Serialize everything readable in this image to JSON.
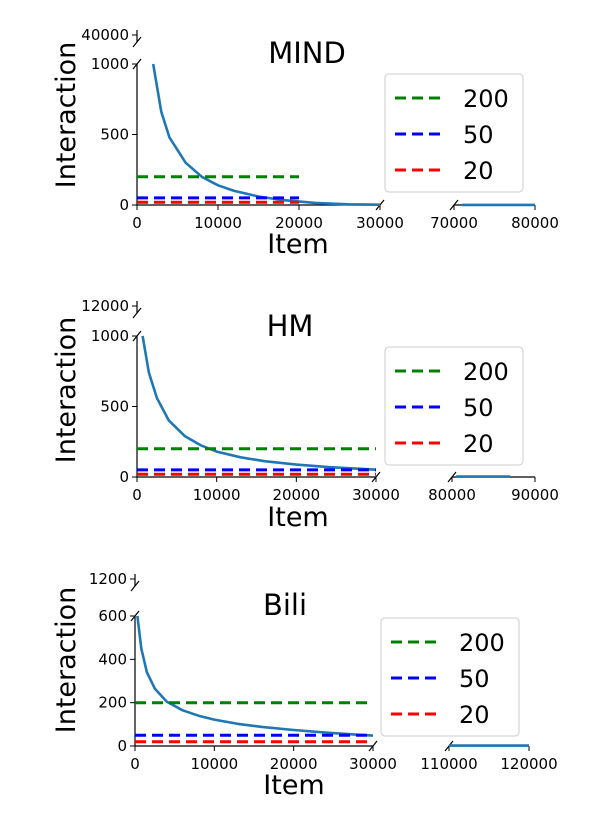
{
  "chart_data": [
    {
      "type": "line",
      "title": "MIND",
      "xlabel": "Item",
      "ylabel": "Interaction",
      "xlim_left": [
        0,
        30000
      ],
      "xlim_right": [
        70000,
        80000
      ],
      "ylim_bottom": [
        0,
        1000
      ],
      "ylim_top_tick": 40000,
      "xticks_left": [
        "0",
        "10000",
        "20000",
        "30000"
      ],
      "xticks_right": [
        "70000",
        "80000"
      ],
      "yticks": [
        "0",
        "500",
        "1000"
      ],
      "ytick_top": "40000",
      "legend_position": "right",
      "series": [
        {
          "name": "",
          "color": "#1f77b4",
          "style": "solid",
          "x": [
            2000,
            3000,
            4000,
            6000,
            8000,
            10000,
            12000,
            15000,
            18000,
            22000,
            26000,
            30000
          ],
          "y": [
            1000,
            660,
            480,
            300,
            200,
            140,
            100,
            60,
            35,
            15,
            5,
            2
          ],
          "right_x": [
            71000,
            80000
          ],
          "right_y": [
            1,
            1
          ]
        },
        {
          "name": "200",
          "color": "#008000",
          "style": "dashed",
          "x": [
            0,
            20000
          ],
          "y": [
            200,
            200
          ]
        },
        {
          "name": "50",
          "color": "#0000ff",
          "style": "dashed",
          "x": [
            0,
            20000
          ],
          "y": [
            50,
            50
          ]
        },
        {
          "name": "20",
          "color": "#ff0000",
          "style": "dashed",
          "x": [
            0,
            20000
          ],
          "y": [
            20,
            20
          ]
        }
      ]
    },
    {
      "type": "line",
      "title": "HM",
      "xlabel": "Item",
      "ylabel": "Interaction",
      "xlim_left": [
        0,
        30000
      ],
      "xlim_right": [
        80000,
        90000
      ],
      "ylim_bottom": [
        0,
        1000
      ],
      "ylim_top_tick": 12000,
      "xticks_left": [
        "0",
        "10000",
        "20000",
        "30000"
      ],
      "xticks_right": [
        "80000",
        "90000"
      ],
      "yticks": [
        "0",
        "500",
        "1000"
      ],
      "ytick_top": "12000",
      "legend_position": "right",
      "series": [
        {
          "name": "",
          "color": "#1f77b4",
          "style": "solid",
          "x": [
            700,
            1500,
            2500,
            4000,
            6000,
            8000,
            10000,
            13000,
            16000,
            20000,
            24000,
            28000,
            30000
          ],
          "y": [
            1000,
            740,
            560,
            400,
            290,
            225,
            180,
            140,
            112,
            88,
            70,
            58,
            52
          ],
          "right_x": [
            80500,
            87000
          ],
          "right_y": [
            3,
            3
          ]
        },
        {
          "name": "200",
          "color": "#008000",
          "style": "dashed",
          "x": [
            0,
            30000
          ],
          "y": [
            200,
            200
          ]
        },
        {
          "name": "50",
          "color": "#0000ff",
          "style": "dashed",
          "x": [
            0,
            30000
          ],
          "y": [
            50,
            50
          ]
        },
        {
          "name": "20",
          "color": "#ff0000",
          "style": "dashed",
          "x": [
            0,
            30000
          ],
          "y": [
            20,
            20
          ]
        }
      ]
    },
    {
      "type": "line",
      "title": "Bili",
      "xlabel": "Item",
      "ylabel": "Interaction",
      "xlim_left": [
        0,
        30000
      ],
      "xlim_right": [
        110000,
        120000
      ],
      "ylim_bottom": [
        0,
        600
      ],
      "ylim_top_tick": 1200,
      "xticks_left": [
        "0",
        "10000",
        "20000",
        "30000"
      ],
      "xticks_right": [
        "110000",
        "120000"
      ],
      "yticks": [
        "0",
        "200",
        "400",
        "600"
      ],
      "ytick_top": "1200",
      "legend_position": "right",
      "series": [
        {
          "name": "",
          "color": "#1f77b4",
          "style": "solid",
          "x": [
            300,
            800,
            1500,
            2500,
            4000,
            6000,
            8000,
            10000,
            13000,
            16000,
            20000,
            24000,
            28000,
            30000
          ],
          "y": [
            600,
            450,
            340,
            265,
            205,
            165,
            140,
            122,
            102,
            88,
            74,
            62,
            52,
            48
          ],
          "right_x": [
            110000,
            120000
          ],
          "right_y": [
            2,
            2
          ]
        },
        {
          "name": "200",
          "color": "#008000",
          "style": "dashed",
          "x": [
            0,
            30000
          ],
          "y": [
            200,
            200
          ]
        },
        {
          "name": "50",
          "color": "#0000ff",
          "style": "dashed",
          "x": [
            0,
            30000
          ],
          "y": [
            50,
            50
          ]
        },
        {
          "name": "20",
          "color": "#ff0000",
          "style": "dashed",
          "x": [
            0,
            30000
          ],
          "y": [
            20,
            20
          ]
        }
      ]
    }
  ]
}
